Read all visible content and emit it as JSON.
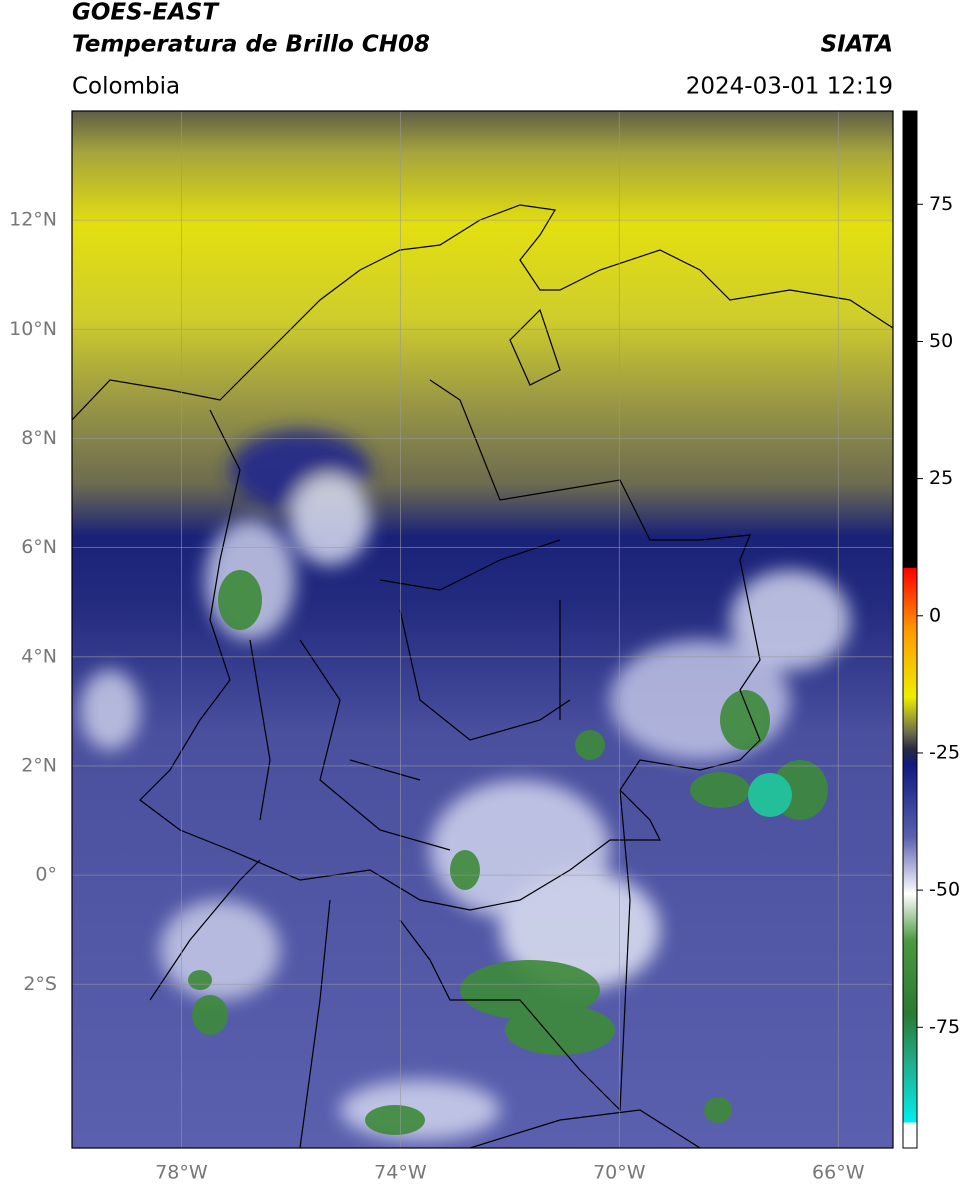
{
  "header": {
    "title_line1": "GOES-EAST",
    "title_line2": "Temperatura de Brillo CH08",
    "region": "Colombia",
    "source": "SIATA",
    "datetime": "2024-03-01 12:19"
  },
  "map": {
    "lon_lim": [
      -80,
      -65
    ],
    "lat_lim": [
      -5,
      14
    ],
    "lat_ticks": [
      {
        "value": 12,
        "label": "12°N"
      },
      {
        "value": 10,
        "label": "10°N"
      },
      {
        "value": 8,
        "label": "8°N"
      },
      {
        "value": 6,
        "label": "6°N"
      },
      {
        "value": 4,
        "label": "4°N"
      },
      {
        "value": 2,
        "label": "2°N"
      },
      {
        "value": 0,
        "label": "0°"
      },
      {
        "value": -2,
        "label": "2°S"
      }
    ],
    "lon_ticks": [
      {
        "value": -78,
        "label": "78°W"
      },
      {
        "value": -74,
        "label": "74°W"
      },
      {
        "value": -70,
        "label": "70°W"
      },
      {
        "value": -66,
        "label": "66°W"
      }
    ]
  },
  "colorbar": {
    "lim": [
      -97,
      92
    ],
    "ticks": [
      75,
      50,
      25,
      0,
      -25,
      -50,
      -75
    ]
  }
}
